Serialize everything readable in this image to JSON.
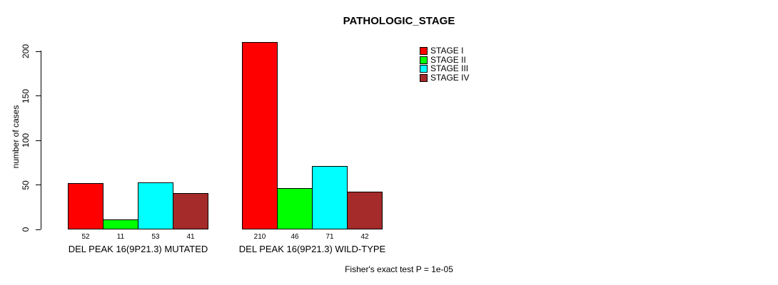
{
  "chart_data": {
    "type": "bar",
    "title": "PATHOLOGIC_STAGE",
    "xlabel": "",
    "ylabel": "number of cases",
    "ylim": [
      0,
      200
    ],
    "yticks": [
      0,
      50,
      100,
      150,
      200
    ],
    "grid": false,
    "legend_position": "top-right",
    "categories": [
      "DEL PEAK 16(9P21.3) MUTATED",
      "DEL PEAK 16(9P21.3) WILD-TYPE"
    ],
    "series": [
      {
        "name": "STAGE I",
        "color": "#ff0000",
        "values": [
          52,
          210
        ]
      },
      {
        "name": "STAGE II",
        "color": "#00ff00",
        "values": [
          11,
          46
        ]
      },
      {
        "name": "STAGE III",
        "color": "#00ffff",
        "values": [
          53,
          71
        ]
      },
      {
        "name": "STAGE IV",
        "color": "#a52a2a",
        "values": [
          41,
          42
        ]
      }
    ],
    "bar_border_color": "#000000",
    "annotation": "Fisher's exact test P = 1e-05"
  }
}
